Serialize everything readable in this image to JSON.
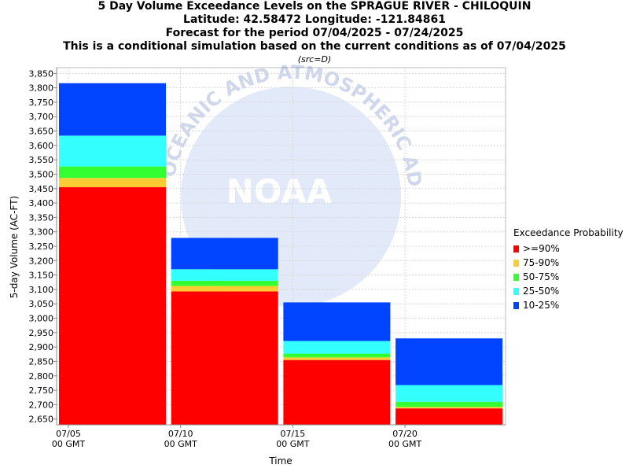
{
  "titles": [
    "5 Day Volume Exceedance Levels on the SPRAGUE RIVER - CHILOQUIN",
    "Latitude: 42.58472 Longitude: -121.84861",
    "Forecast for the period 07/04/2025 - 07/24/2025",
    "This is a conditional simulation based on the current conditions as of 07/04/2025"
  ],
  "subtitle": "(src=D)",
  "watermark": {
    "logo": "NOAA",
    "ring_text": "OCEANIC AND ATMOSPHERIC ADMINISTRATION"
  },
  "chart_data": {
    "type": "bar",
    "stacked": true,
    "title": "5 Day Volume Exceedance Levels on the SPRAGUE RIVER - CHILOQUIN",
    "xlabel": "Time",
    "ylabel": "5-day Volume (AC-FT)",
    "ylim": [
      2630,
      3870
    ],
    "yticks": [
      2650,
      2700,
      2750,
      2800,
      2850,
      2900,
      2950,
      3000,
      3050,
      3100,
      3150,
      3200,
      3250,
      3300,
      3350,
      3400,
      3450,
      3500,
      3550,
      3600,
      3650,
      3700,
      3750,
      3800,
      3850
    ],
    "grid": true,
    "legend_position": "right",
    "legend_title": "Exceedance Probability",
    "xticks": [
      {
        "line1": "07/05",
        "line2": "00 GMT"
      },
      {
        "line1": "07/10",
        "line2": "00 GMT"
      },
      {
        "line1": "07/15",
        "line2": "00 GMT"
      },
      {
        "line1": "07/20",
        "line2": "00 GMT"
      }
    ],
    "categories": [
      "07/05",
      "07/10",
      "07/15",
      "07/20"
    ],
    "series": [
      {
        "name": ">=90%",
        "color": "#ff0000",
        "top": [
          3455,
          3093,
          2855,
          2687
        ]
      },
      {
        "name": "75-90%",
        "color": "#ffcc33",
        "top": [
          3487,
          3112,
          2864,
          2692
        ]
      },
      {
        "name": "50-75%",
        "color": "#33ff33",
        "top": [
          3527,
          3130,
          2877,
          2710
        ]
      },
      {
        "name": "25-50%",
        "color": "#33ffff",
        "top": [
          3634,
          3170,
          2921,
          2768
        ]
      },
      {
        "name": "10-25%",
        "color": "#0044ff",
        "top": [
          3816,
          3279,
          3055,
          2930
        ]
      }
    ]
  }
}
